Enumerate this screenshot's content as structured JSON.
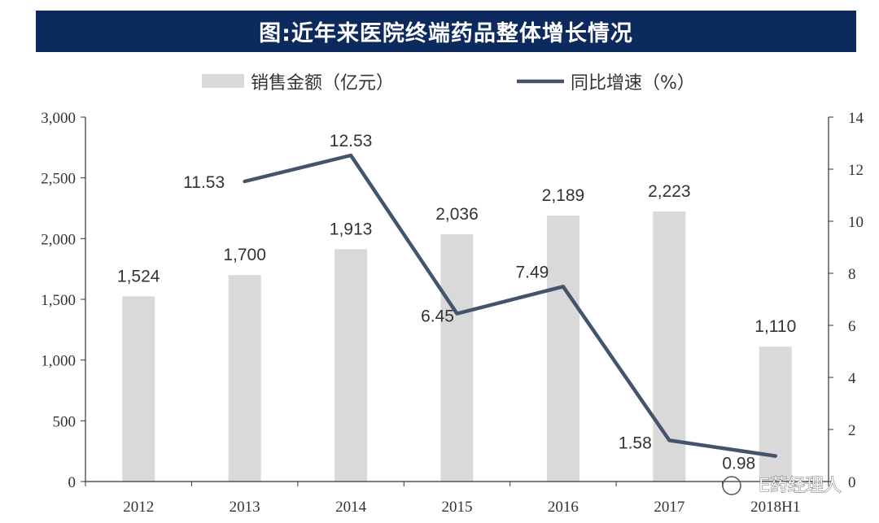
{
  "title": "图:近年来医院终端药品整体增长情况",
  "watermark": "E药经理人",
  "chart_data": {
    "type": "bar",
    "categories": [
      "2012",
      "2013",
      "2014",
      "2015",
      "2016",
      "2017",
      "2018H1"
    ],
    "series": [
      {
        "name": "销售金额（亿元）",
        "type": "bar",
        "axis": "left",
        "color": "#d9d9d9",
        "values": [
          1524,
          1700,
          1913,
          2036,
          2189,
          2223,
          1110
        ],
        "labels": [
          "1,524",
          "1,700",
          "1,913",
          "2,036",
          "2,189",
          "2,223",
          "1,110"
        ]
      },
      {
        "name": "同比增速（%）",
        "type": "line",
        "axis": "right",
        "color": "#44546a",
        "values": [
          null,
          11.53,
          12.53,
          6.45,
          7.49,
          1.58,
          0.98
        ],
        "labels": [
          "",
          "11.53",
          "12.53",
          "6.45",
          "7.49",
          "1.58",
          "0.98"
        ]
      }
    ],
    "y_left": {
      "range": [
        0,
        3000
      ],
      "ticks": [
        0,
        500,
        1000,
        1500,
        2000,
        2500,
        3000
      ],
      "tick_labels": [
        "0",
        "500",
        "1,000",
        "1,500",
        "2,000",
        "2,500",
        "3,000"
      ]
    },
    "y_right": {
      "range": [
        0,
        14
      ],
      "ticks": [
        0,
        2,
        4,
        6,
        8,
        10,
        12,
        14
      ],
      "tick_labels": [
        "0",
        "2",
        "4",
        "6",
        "8",
        "10",
        "12",
        "14"
      ]
    },
    "legend_position": "top",
    "grid": false
  }
}
